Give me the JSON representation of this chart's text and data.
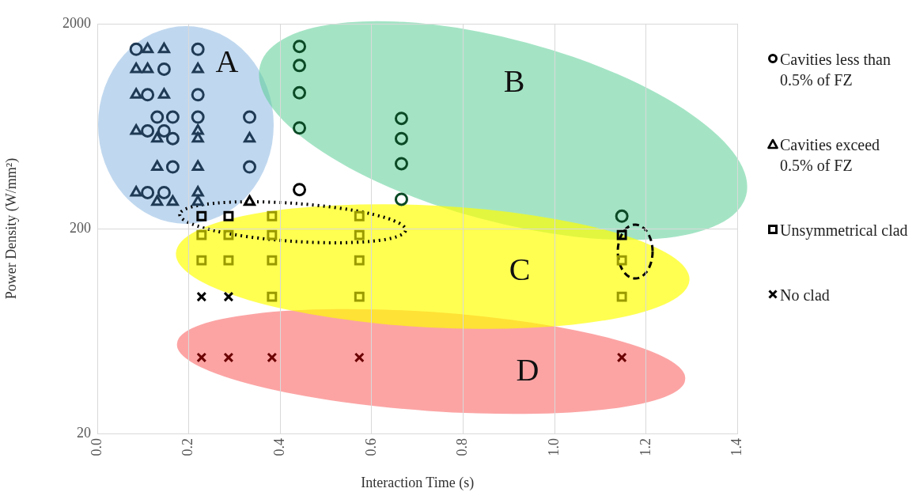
{
  "chart_data": {
    "type": "scatter",
    "xlabel": "Interaction Time (s)",
    "ylabel": "Power Density (W/mm²)",
    "log": "y",
    "grid": true,
    "legend": "right",
    "xlim": [
      0,
      1.4
    ],
    "xticks": [
      {
        "value": 0,
        "label": "0.0"
      },
      {
        "value": 0.2,
        "label": "0.2"
      },
      {
        "value": 0.4,
        "label": "0.4"
      },
      {
        "value": 0.6,
        "label": "0.6"
      },
      {
        "value": 0.8,
        "label": "0.8"
      },
      {
        "value": 1,
        "label": "1.0"
      },
      {
        "value": 1.2,
        "label": "1.2"
      },
      {
        "value": 1.4,
        "label": "1.4"
      }
    ],
    "ylim": [
      20,
      2000
    ],
    "yticks": [
      20,
      200,
      2000
    ],
    "annotations": [
      "A",
      "B",
      "C",
      "D"
    ],
    "series": [
      {
        "name": "Cavities less than 0.5% of FZ",
        "marker": "circle",
        "color": "#000000",
        "x": [
          0.085,
          0.22,
          0.146,
          0.11,
          0.22,
          0.131,
          0.165,
          0.22,
          0.333,
          0.11,
          0.146,
          0.165,
          0.165,
          0.333,
          0.11,
          0.146,
          0.442,
          0.442,
          0.442,
          0.442,
          0.665,
          0.665,
          0.665,
          0.665,
          1.147,
          0.442
        ],
        "values": [
          1500,
          1500,
          1200,
          900,
          900,
          700,
          700,
          700,
          700,
          600,
          600,
          550,
          400,
          400,
          300,
          300,
          1550,
          1250,
          920,
          620,
          690,
          550,
          415,
          278,
          230,
          310
        ],
        "colors": [
          "#1f3a55",
          "#1f3a55",
          "#1f3a55",
          "#1f3a55",
          "#1f3a55",
          "#1f3a55",
          "#1f3a55",
          "#1f3a55",
          "#1f3a55",
          "#1f3a55",
          "#1f3a55",
          "#1f3a55",
          "#1f3a55",
          "#1f3a55",
          "#1f3a55",
          "#1f3a55",
          "#0b4a25",
          "#0b4a25",
          "#0b4a25",
          "#0b4a25",
          "#0b4a25",
          "#0b4a25",
          "#0b4a25",
          "#0b4a25",
          "#0b4a25",
          "#000000"
        ]
      },
      {
        "name": "Cavities exceed 0.5% of FZ",
        "marker": "triangle",
        "color": "#000000",
        "x": [
          0.11,
          0.146,
          0.085,
          0.11,
          0.22,
          0.085,
          0.146,
          0.085,
          0.22,
          0.131,
          0.22,
          0.333,
          0.131,
          0.22,
          0.085,
          0.22,
          0.131,
          0.165,
          0.22,
          0.333
        ],
        "values": [
          1500,
          1500,
          1200,
          1200,
          1200,
          900,
          900,
          600,
          600,
          550,
          550,
          550,
          400,
          400,
          300,
          300,
          270,
          270,
          270,
          270
        ],
        "colors": [
          "#1f3a55",
          "#1f3a55",
          "#1f3a55",
          "#1f3a55",
          "#1f3a55",
          "#1f3a55",
          "#1f3a55",
          "#1f3a55",
          "#1f3a55",
          "#1f3a55",
          "#1f3a55",
          "#1f3a55",
          "#1f3a55",
          "#1f3a55",
          "#1f3a55",
          "#1f3a55",
          "#1f3a55",
          "#1f3a55",
          "#1f3a55",
          "#000000"
        ]
      },
      {
        "name": "Unsymmetrical clad",
        "marker": "square",
        "color": "#000000",
        "x": [
          0.228,
          0.287,
          1.147,
          0.382,
          0.573,
          0.228,
          0.287,
          0.382,
          0.573,
          0.228,
          0.287,
          0.382,
          0.573,
          1.147,
          0.382,
          0.573,
          1.147
        ],
        "values": [
          230,
          230,
          186,
          230,
          230,
          186,
          186,
          186,
          186,
          140,
          140,
          140,
          140,
          140,
          93,
          93,
          93
        ],
        "colors": [
          "#000000",
          "#000000",
          "#000000",
          "#9a9a00",
          "#9a9a00",
          "#9a9a00",
          "#9a9a00",
          "#9a9a00",
          "#9a9a00",
          "#9a9a00",
          "#9a9a00",
          "#9a9a00",
          "#9a9a00",
          "#9a9a00",
          "#9a9a00",
          "#9a9a00",
          "#9a9a00"
        ]
      },
      {
        "name": "No clad",
        "marker": "cross",
        "color": "#000000",
        "x": [
          0.228,
          0.287,
          0.228,
          0.287,
          0.382,
          0.573,
          1.147
        ],
        "values": [
          93,
          93,
          47,
          47,
          47,
          47,
          47
        ],
        "colors": [
          "#000000",
          "#000000",
          "#6b0000",
          "#6b0000",
          "#6b0000",
          "#6b0000",
          "#6b0000"
        ]
      }
    ]
  }
}
